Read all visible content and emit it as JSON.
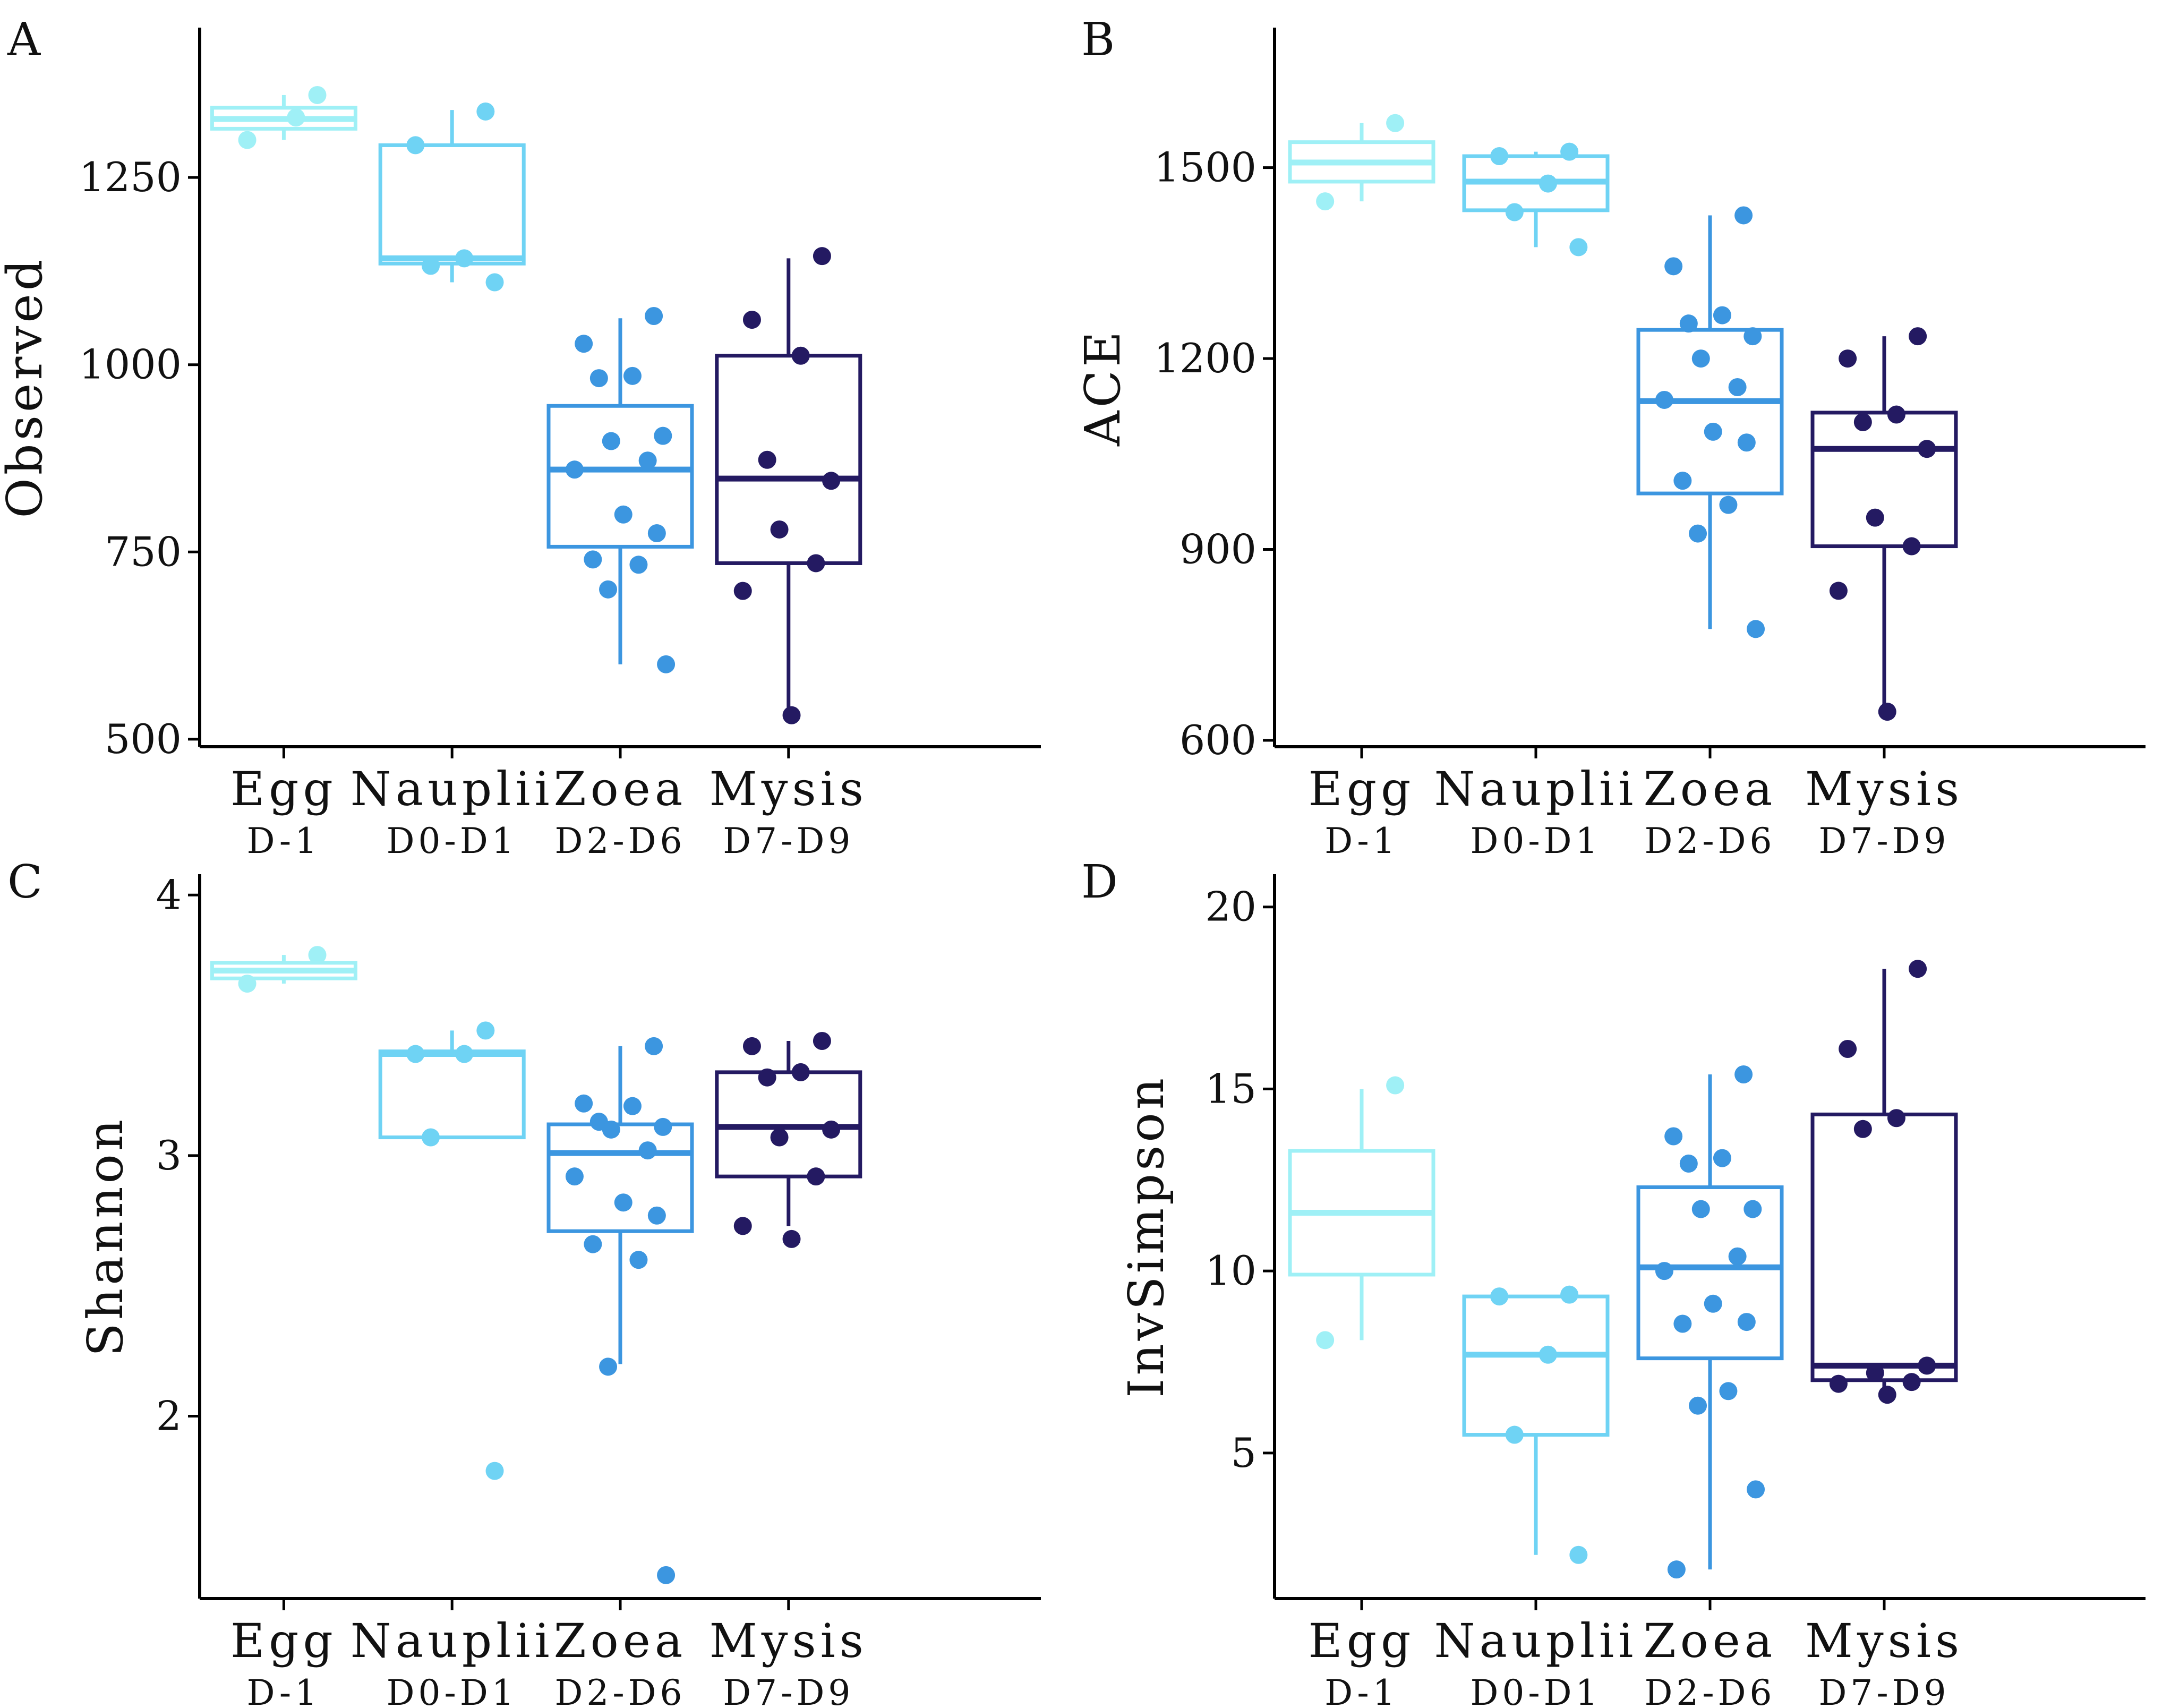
{
  "chart_data": [
    {
      "type": "box",
      "panel": "A",
      "ylabel": "Observed",
      "xlabel": "",
      "ylim": [
        490,
        1450
      ],
      "yticks": [
        500,
        750,
        1000,
        1250
      ],
      "categories": [
        "Egg",
        "Nauplii",
        "Zoea",
        "Mysis"
      ],
      "sublabels": [
        "D-1",
        "D0-D1",
        "D2-D6",
        "D7-D9"
      ],
      "colors": [
        "#9ff0f6",
        "#6fd3f4",
        "#3c96e0",
        "#241a62"
      ],
      "grid": false,
      "boxes": [
        {
          "category": "Egg",
          "low": 1300,
          "q1": 1315,
          "median": 1328,
          "q3": 1343,
          "high": 1360
        },
        {
          "category": "Nauplii",
          "low": 1110,
          "q1": 1135,
          "median": 1142,
          "q3": 1293,
          "high": 1340
        },
        {
          "category": "Zoea",
          "low": 600,
          "q1": 757,
          "median": 860,
          "q3": 945,
          "high": 1062
        },
        {
          "category": "Mysis",
          "low": 530,
          "q1": 735,
          "median": 848,
          "q3": 1012,
          "high": 1142
        }
      ],
      "points": [
        [
          1360,
          1300,
          1330
        ],
        [
          1338,
          1293,
          1142,
          1132,
          1110
        ],
        [
          1065,
          1028,
          985,
          982,
          905,
          898,
          872,
          860,
          800,
          775,
          740,
          733,
          700,
          600
        ],
        [
          1145,
          1060,
          1012,
          873,
          845,
          780,
          735,
          698,
          532
        ]
      ]
    },
    {
      "type": "box",
      "panel": "B",
      "ylabel": "ACE",
      "xlabel": "",
      "ylim": [
        590,
        1720
      ],
      "yticks": [
        600,
        900,
        1200,
        1500
      ],
      "categories": [
        "Egg",
        "Nauplii",
        "Zoea",
        "Mysis"
      ],
      "sublabels": [
        "D-1",
        "D0-D1",
        "D2-D6",
        "D7-D9"
      ],
      "colors": [
        "#9ff0f6",
        "#6fd3f4",
        "#3c96e0",
        "#241a62"
      ],
      "grid": false,
      "boxes": [
        {
          "category": "Egg",
          "low": 1447,
          "q1": 1478,
          "median": 1508,
          "q3": 1540,
          "high": 1570
        },
        {
          "category": "Nauplii",
          "low": 1375,
          "q1": 1433,
          "median": 1478,
          "q3": 1518,
          "high": 1525
        },
        {
          "category": "Zoea",
          "low": 775,
          "q1": 988,
          "median": 1133,
          "q3": 1245,
          "high": 1425
        },
        {
          "category": "Mysis",
          "low": 645,
          "q1": 905,
          "median": 1058,
          "q3": 1115,
          "high": 1235
        }
      ],
      "points": [
        [
          1570,
          1447
        ],
        [
          1525,
          1518,
          1475,
          1430,
          1375
        ],
        [
          1425,
          1345,
          1268,
          1255,
          1235,
          1200,
          1155,
          1135,
          1085,
          1068,
          1008,
          970,
          925,
          775
        ],
        [
          1235,
          1200,
          1112,
          1100,
          1058,
          950,
          905,
          835,
          645
        ]
      ]
    },
    {
      "type": "box",
      "panel": "C",
      "ylabel": "Shannon",
      "xlabel": "",
      "ylim": [
        1.3,
        4.08
      ],
      "yticks": [
        2,
        3,
        4
      ],
      "categories": [
        "Egg",
        "Nauplii",
        "Zoea",
        "Mysis"
      ],
      "sublabels": [
        "D-1",
        "D0-D1",
        "D2-D6",
        "D7-D9"
      ],
      "colors": [
        "#9ff0f6",
        "#6fd3f4",
        "#3c96e0",
        "#241a62"
      ],
      "grid": false,
      "boxes": [
        {
          "category": "Egg",
          "low": 3.66,
          "q1": 3.68,
          "median": 3.71,
          "q3": 3.74,
          "high": 3.77
        },
        {
          "category": "Nauplii",
          "low": 3.07,
          "q1": 3.07,
          "median": 3.39,
          "q3": 3.4,
          "high": 3.48
        },
        {
          "category": "Zoea",
          "low": 2.2,
          "q1": 2.71,
          "median": 3.01,
          "q3": 3.12,
          "high": 3.42
        },
        {
          "category": "Mysis",
          "low": 2.73,
          "q1": 2.92,
          "median": 3.11,
          "q3": 3.32,
          "high": 3.44
        }
      ],
      "points": [
        [
          3.77,
          3.66
        ],
        [
          3.48,
          3.39,
          3.39,
          3.07,
          1.79
        ],
        [
          3.42,
          3.2,
          3.19,
          3.13,
          3.11,
          3.1,
          3.02,
          2.92,
          2.82,
          2.77,
          2.66,
          2.6,
          2.19,
          1.39
        ],
        [
          3.44,
          3.42,
          3.32,
          3.3,
          3.1,
          3.07,
          2.92,
          2.73,
          2.68
        ]
      ]
    },
    {
      "type": "box",
      "panel": "D",
      "ylabel": "InvSimpson",
      "xlabel": "",
      "ylim": [
        1.0,
        20.9
      ],
      "yticks": [
        5,
        10,
        15,
        20
      ],
      "categories": [
        "Egg",
        "Nauplii",
        "Zoea",
        "Mysis"
      ],
      "sublabels": [
        "D-1",
        "D0-D1",
        "D2-D6",
        "D7-D9"
      ],
      "colors": [
        "#9ff0f6",
        "#6fd3f4",
        "#3c96e0",
        "#241a62"
      ],
      "grid": false,
      "boxes": [
        {
          "category": "Egg",
          "low": 8.1,
          "q1": 9.9,
          "median": 11.6,
          "q3": 13.3,
          "high": 15.0
        },
        {
          "category": "Nauplii",
          "low": 2.2,
          "q1": 5.5,
          "median": 7.7,
          "q3": 9.3,
          "high": 9.3
        },
        {
          "category": "Zoea",
          "low": 1.8,
          "q1": 7.6,
          "median": 10.1,
          "q3": 12.3,
          "high": 15.4
        },
        {
          "category": "Mysis",
          "low": 6.8,
          "q1": 7.0,
          "median": 7.4,
          "q3": 14.3,
          "high": 18.3
        }
      ],
      "points": [
        [
          15.1,
          8.1
        ],
        [
          9.35,
          9.3,
          7.7,
          5.5,
          2.2
        ],
        [
          15.4,
          13.7,
          13.1,
          12.95,
          11.7,
          11.7,
          10.4,
          10.0,
          9.1,
          8.6,
          8.55,
          6.7,
          6.3,
          4.0,
          1.8
        ],
        [
          18.3,
          16.1,
          14.2,
          13.9,
          7.4,
          7.2,
          6.95,
          6.9,
          6.6
        ]
      ]
    }
  ]
}
